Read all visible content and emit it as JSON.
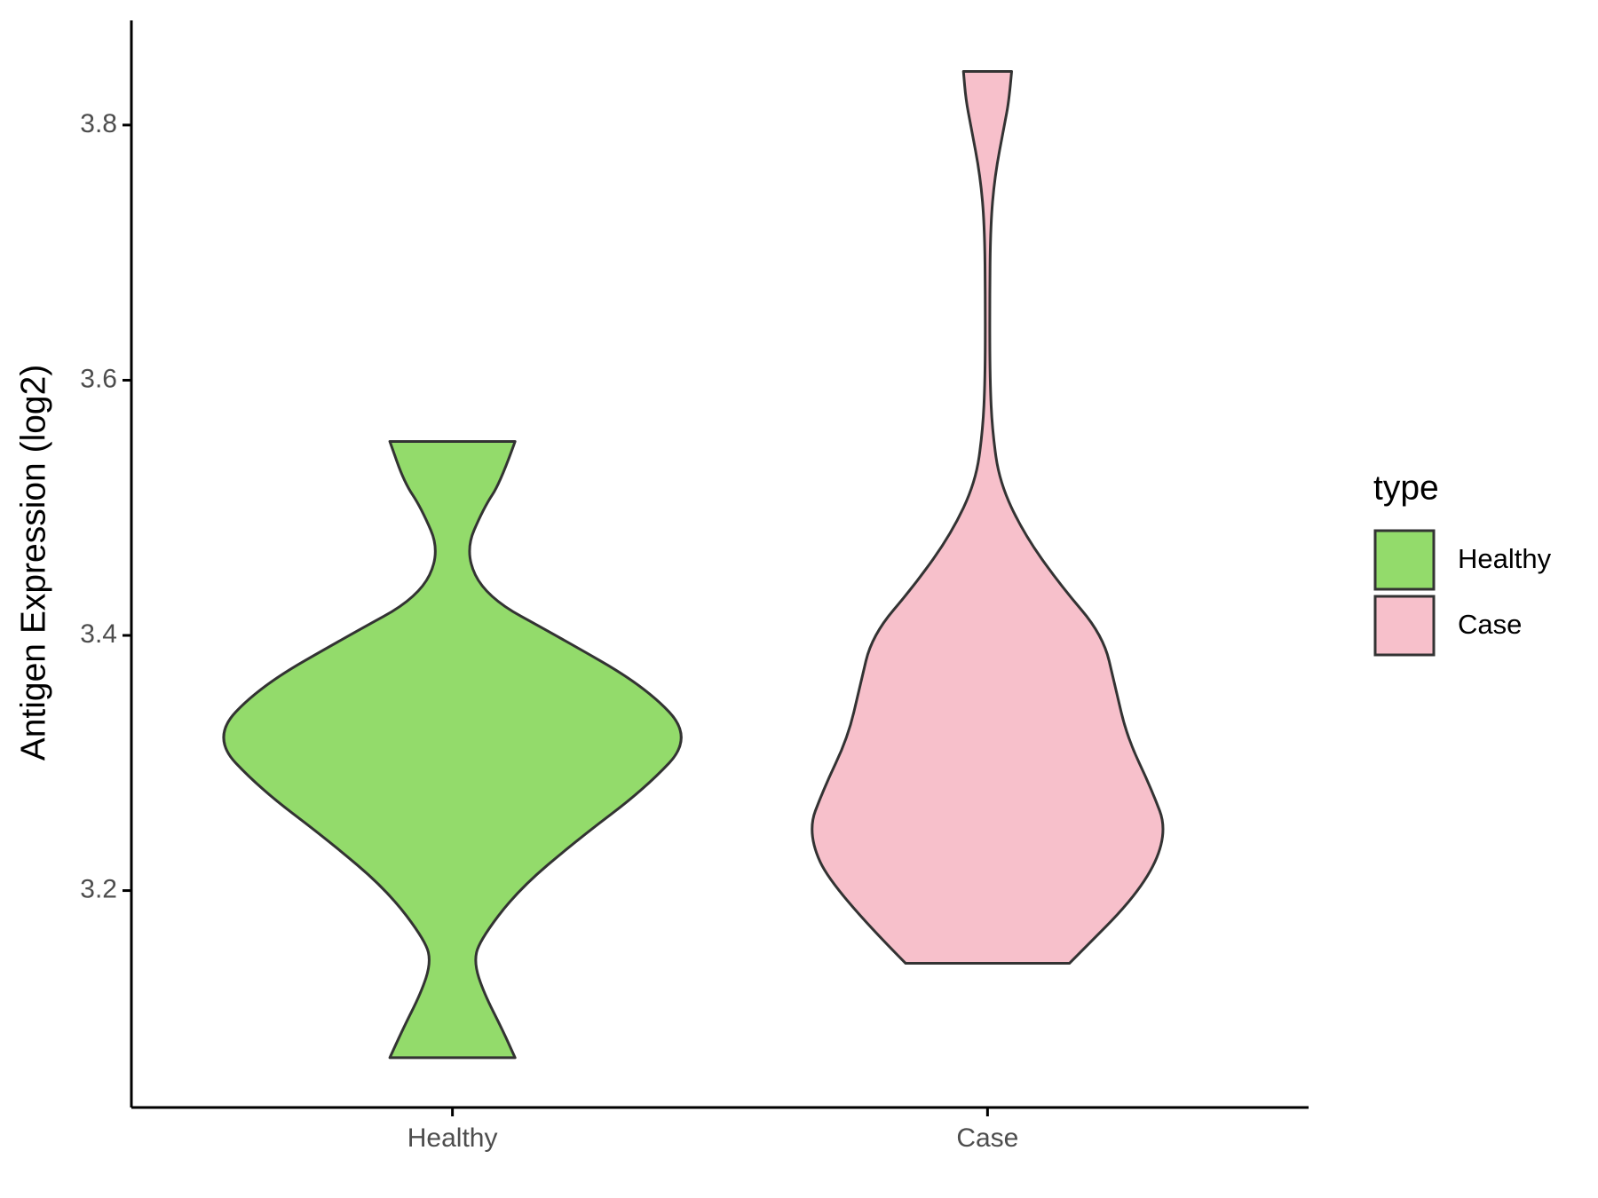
{
  "chart_data": {
    "type": "violin",
    "y_axis_label": "Antigen Expression (log2)",
    "legend_title": "type",
    "categories": [
      "Healthy",
      "Case"
    ],
    "ylim": [
      3.03,
      3.882
    ],
    "yticks": [
      3.2,
      3.4,
      3.6,
      3.8
    ],
    "legend_position": "right",
    "series": [
      {
        "name": "Healthy",
        "color": "#93db6b",
        "y": [
          3.552,
          3.52,
          3.5,
          3.465,
          3.43,
          3.4,
          3.36,
          3.32,
          3.28,
          3.24,
          3.2,
          3.16,
          3.143,
          3.12,
          3.09,
          3.069
        ],
        "density": [
          0.26,
          0.2,
          0.13,
          0.05,
          0.14,
          0.43,
          0.8,
          1.0,
          0.8,
          0.52,
          0.27,
          0.11,
          0.09,
          0.13,
          0.21,
          0.26
        ]
      },
      {
        "name": "Case",
        "color": "#f7c0cb",
        "y": [
          3.842,
          3.82,
          3.8,
          3.76,
          3.72,
          3.66,
          3.6,
          3.56,
          3.52,
          3.48,
          3.44,
          3.4,
          3.36,
          3.32,
          3.28,
          3.245,
          3.2,
          3.143
        ],
        "density": [
          0.1,
          0.09,
          0.07,
          0.03,
          0.012,
          0.009,
          0.01,
          0.02,
          0.05,
          0.15,
          0.3,
          0.48,
          0.53,
          0.58,
          0.68,
          0.75,
          0.64,
          0.34
        ]
      }
    ]
  }
}
